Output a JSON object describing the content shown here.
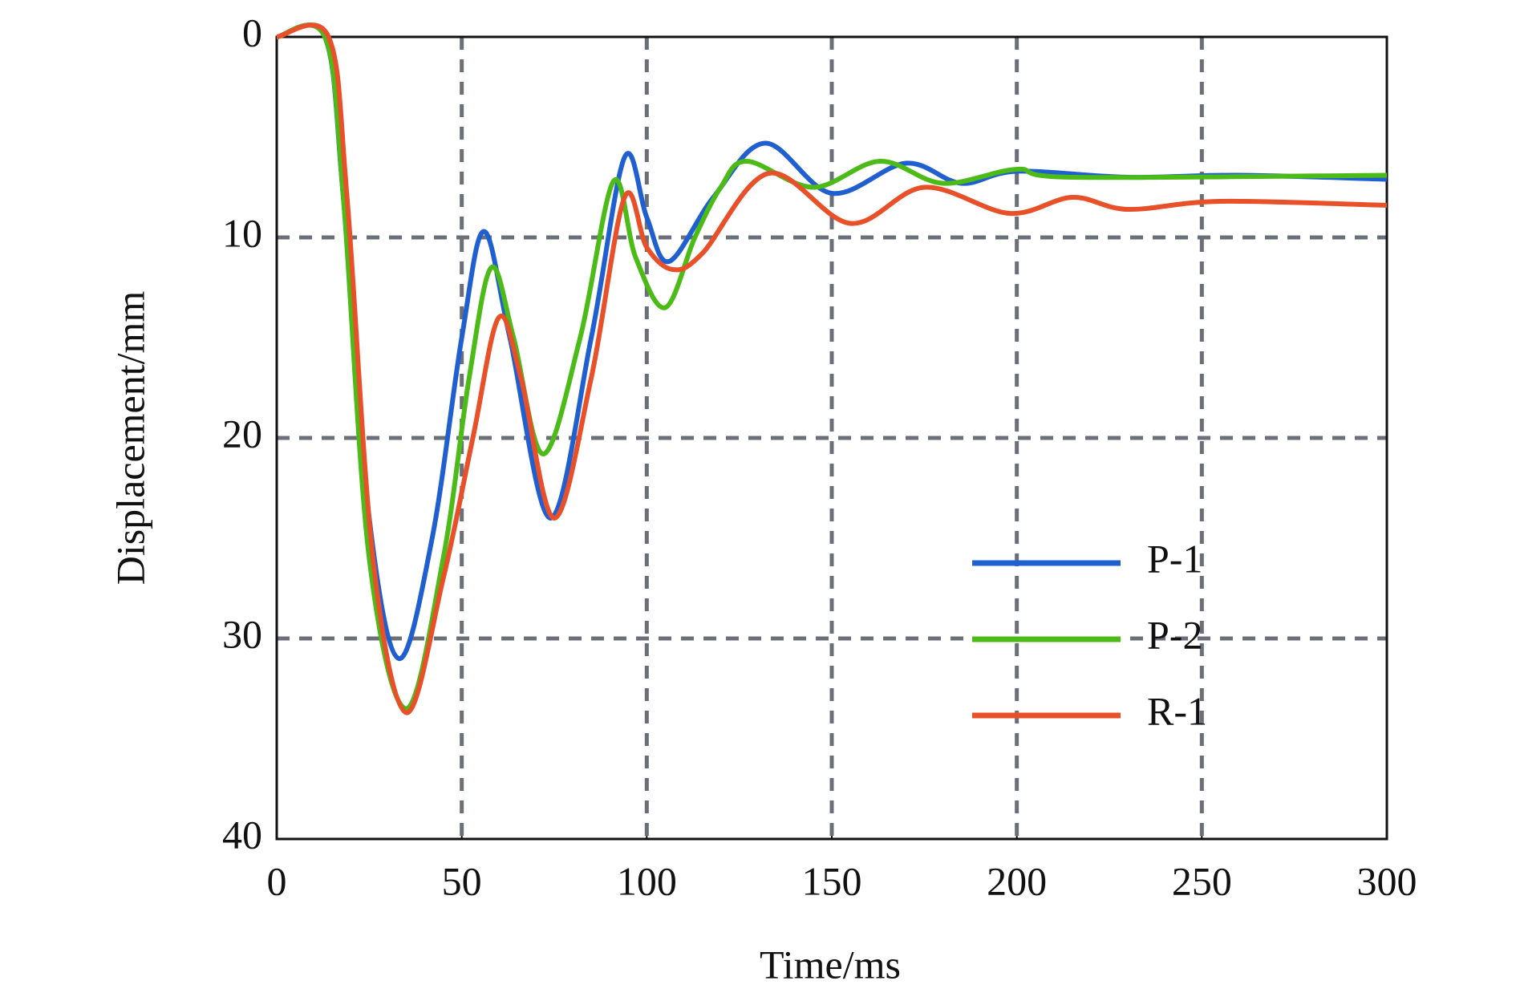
{
  "chart_data": {
    "type": "line",
    "xlabel": "Time/ms",
    "ylabel": "Displacement/mm",
    "xlim": [
      0,
      300
    ],
    "xticks": [
      0,
      50,
      100,
      150,
      200,
      250,
      300
    ],
    "ylim": [
      0,
      40
    ],
    "yticks": [
      0,
      10,
      20,
      30,
      40
    ],
    "y_inverted": true,
    "grid": true,
    "legend": "lower right",
    "series": [
      {
        "name": "P-1",
        "color": "#1f5fd0",
        "x": [
          0,
          13,
          18,
          25,
          33,
          42,
          50,
          56,
          63,
          74,
          85,
          94,
          100,
          106,
          118,
          132,
          150,
          170,
          185,
          200,
          230,
          260,
          300
        ],
        "values": [
          0,
          0,
          8,
          24,
          31,
          25,
          15,
          9.7,
          15,
          24,
          15,
          6,
          9,
          11.2,
          8,
          5.3,
          7.8,
          6.3,
          7.3,
          6.7,
          7,
          6.9,
          7.1
        ]
      },
      {
        "name": "P-2",
        "color": "#4cbb17",
        "x": [
          0,
          13,
          18,
          25,
          35,
          45,
          52,
          58,
          64,
          72,
          82,
          91,
          97,
          105,
          113,
          120,
          127,
          145,
          163,
          180,
          200,
          215,
          300
        ],
        "values": [
          0,
          0,
          8,
          26,
          33.5,
          26,
          17,
          11.5,
          15,
          20.8,
          15,
          7.2,
          11,
          13.5,
          10,
          7.5,
          6.2,
          7.5,
          6.2,
          7.3,
          6.6,
          7,
          6.9
        ]
      },
      {
        "name": "R-1",
        "color": "#e8502a",
        "x": [
          0,
          14,
          19,
          26,
          35,
          45,
          53,
          60,
          66,
          75,
          85,
          94,
          100,
          107,
          115,
          133,
          155,
          175,
          198,
          215,
          230,
          255,
          300
        ],
        "values": [
          0,
          0,
          8,
          26,
          33.7,
          27,
          20,
          14,
          17,
          24,
          17,
          8,
          10.5,
          11.6,
          10.8,
          6.8,
          9.3,
          7.5,
          8.8,
          8,
          8.6,
          8.2,
          8.4
        ]
      }
    ]
  }
}
